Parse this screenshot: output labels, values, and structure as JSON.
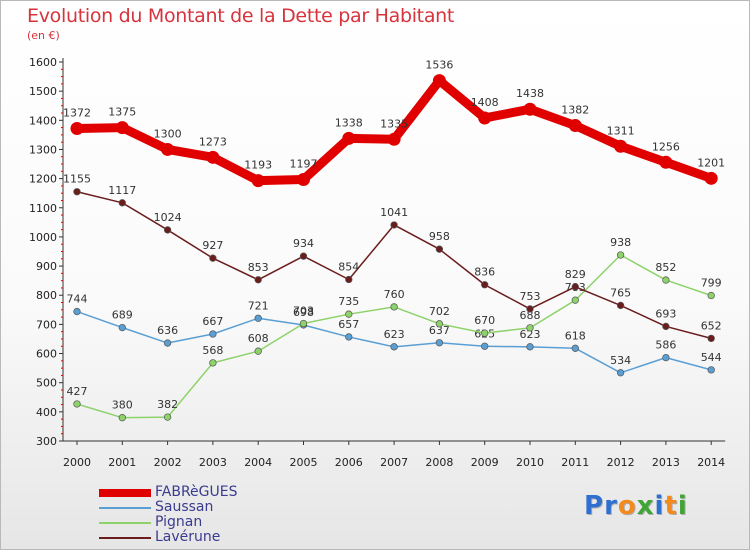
{
  "title": "Evolution du Montant de la Dette par Habitant",
  "unit": "(en €)",
  "logo": {
    "text": "Proxiti",
    "letters": [
      {
        "ch": "P",
        "color": "#2f6fd0"
      },
      {
        "ch": "r",
        "color": "#2f6fd0"
      },
      {
        "ch": "o",
        "color": "#f28a1e"
      },
      {
        "ch": "x",
        "color": "#3fa535"
      },
      {
        "ch": "i",
        "color": "#2f6fd0"
      },
      {
        "ch": "t",
        "color": "#f28a1e"
      },
      {
        "ch": "i",
        "color": "#3fa535"
      }
    ]
  },
  "chart_data": {
    "type": "line",
    "title": "Evolution du Montant de la Dette par Habitant",
    "ylabel": "(en €)",
    "xlabel": "",
    "ylim": [
      300,
      1600
    ],
    "y_ticks": [
      300,
      400,
      500,
      600,
      700,
      800,
      900,
      1000,
      1100,
      1200,
      1300,
      1400,
      1500,
      1600
    ],
    "categories": [
      "2000",
      "2001",
      "2002",
      "2003",
      "2004",
      "2005",
      "2006",
      "2007",
      "2008",
      "2009",
      "2010",
      "2011",
      "2012",
      "2013",
      "2014"
    ],
    "grid": false,
    "legend_position": "bottom-left",
    "series": [
      {
        "name": "FABRèGUES",
        "color": "#e00000",
        "values": [
          1372,
          1375,
          1300,
          1273,
          1193,
          1197,
          1338,
          1335,
          1536,
          1408,
          1438,
          1382,
          1311,
          1256,
          1201
        ]
      },
      {
        "name": "Saussan",
        "color": "#5a9fd4",
        "values": [
          744,
          689,
          636,
          667,
          721,
          698,
          657,
          623,
          637,
          625,
          623,
          618,
          534,
          586,
          544
        ]
      },
      {
        "name": "Pignan",
        "color": "#8ed26a",
        "values": [
          427,
          380,
          382,
          568,
          608,
          703,
          735,
          760,
          702,
          670,
          688,
          783,
          938,
          852,
          799
        ]
      },
      {
        "name": "Lavérune",
        "color": "#6b1d1d",
        "values": [
          1155,
          1117,
          1024,
          927,
          853,
          934,
          854,
          1041,
          958,
          836,
          753,
          829,
          765,
          693,
          652
        ]
      }
    ]
  }
}
